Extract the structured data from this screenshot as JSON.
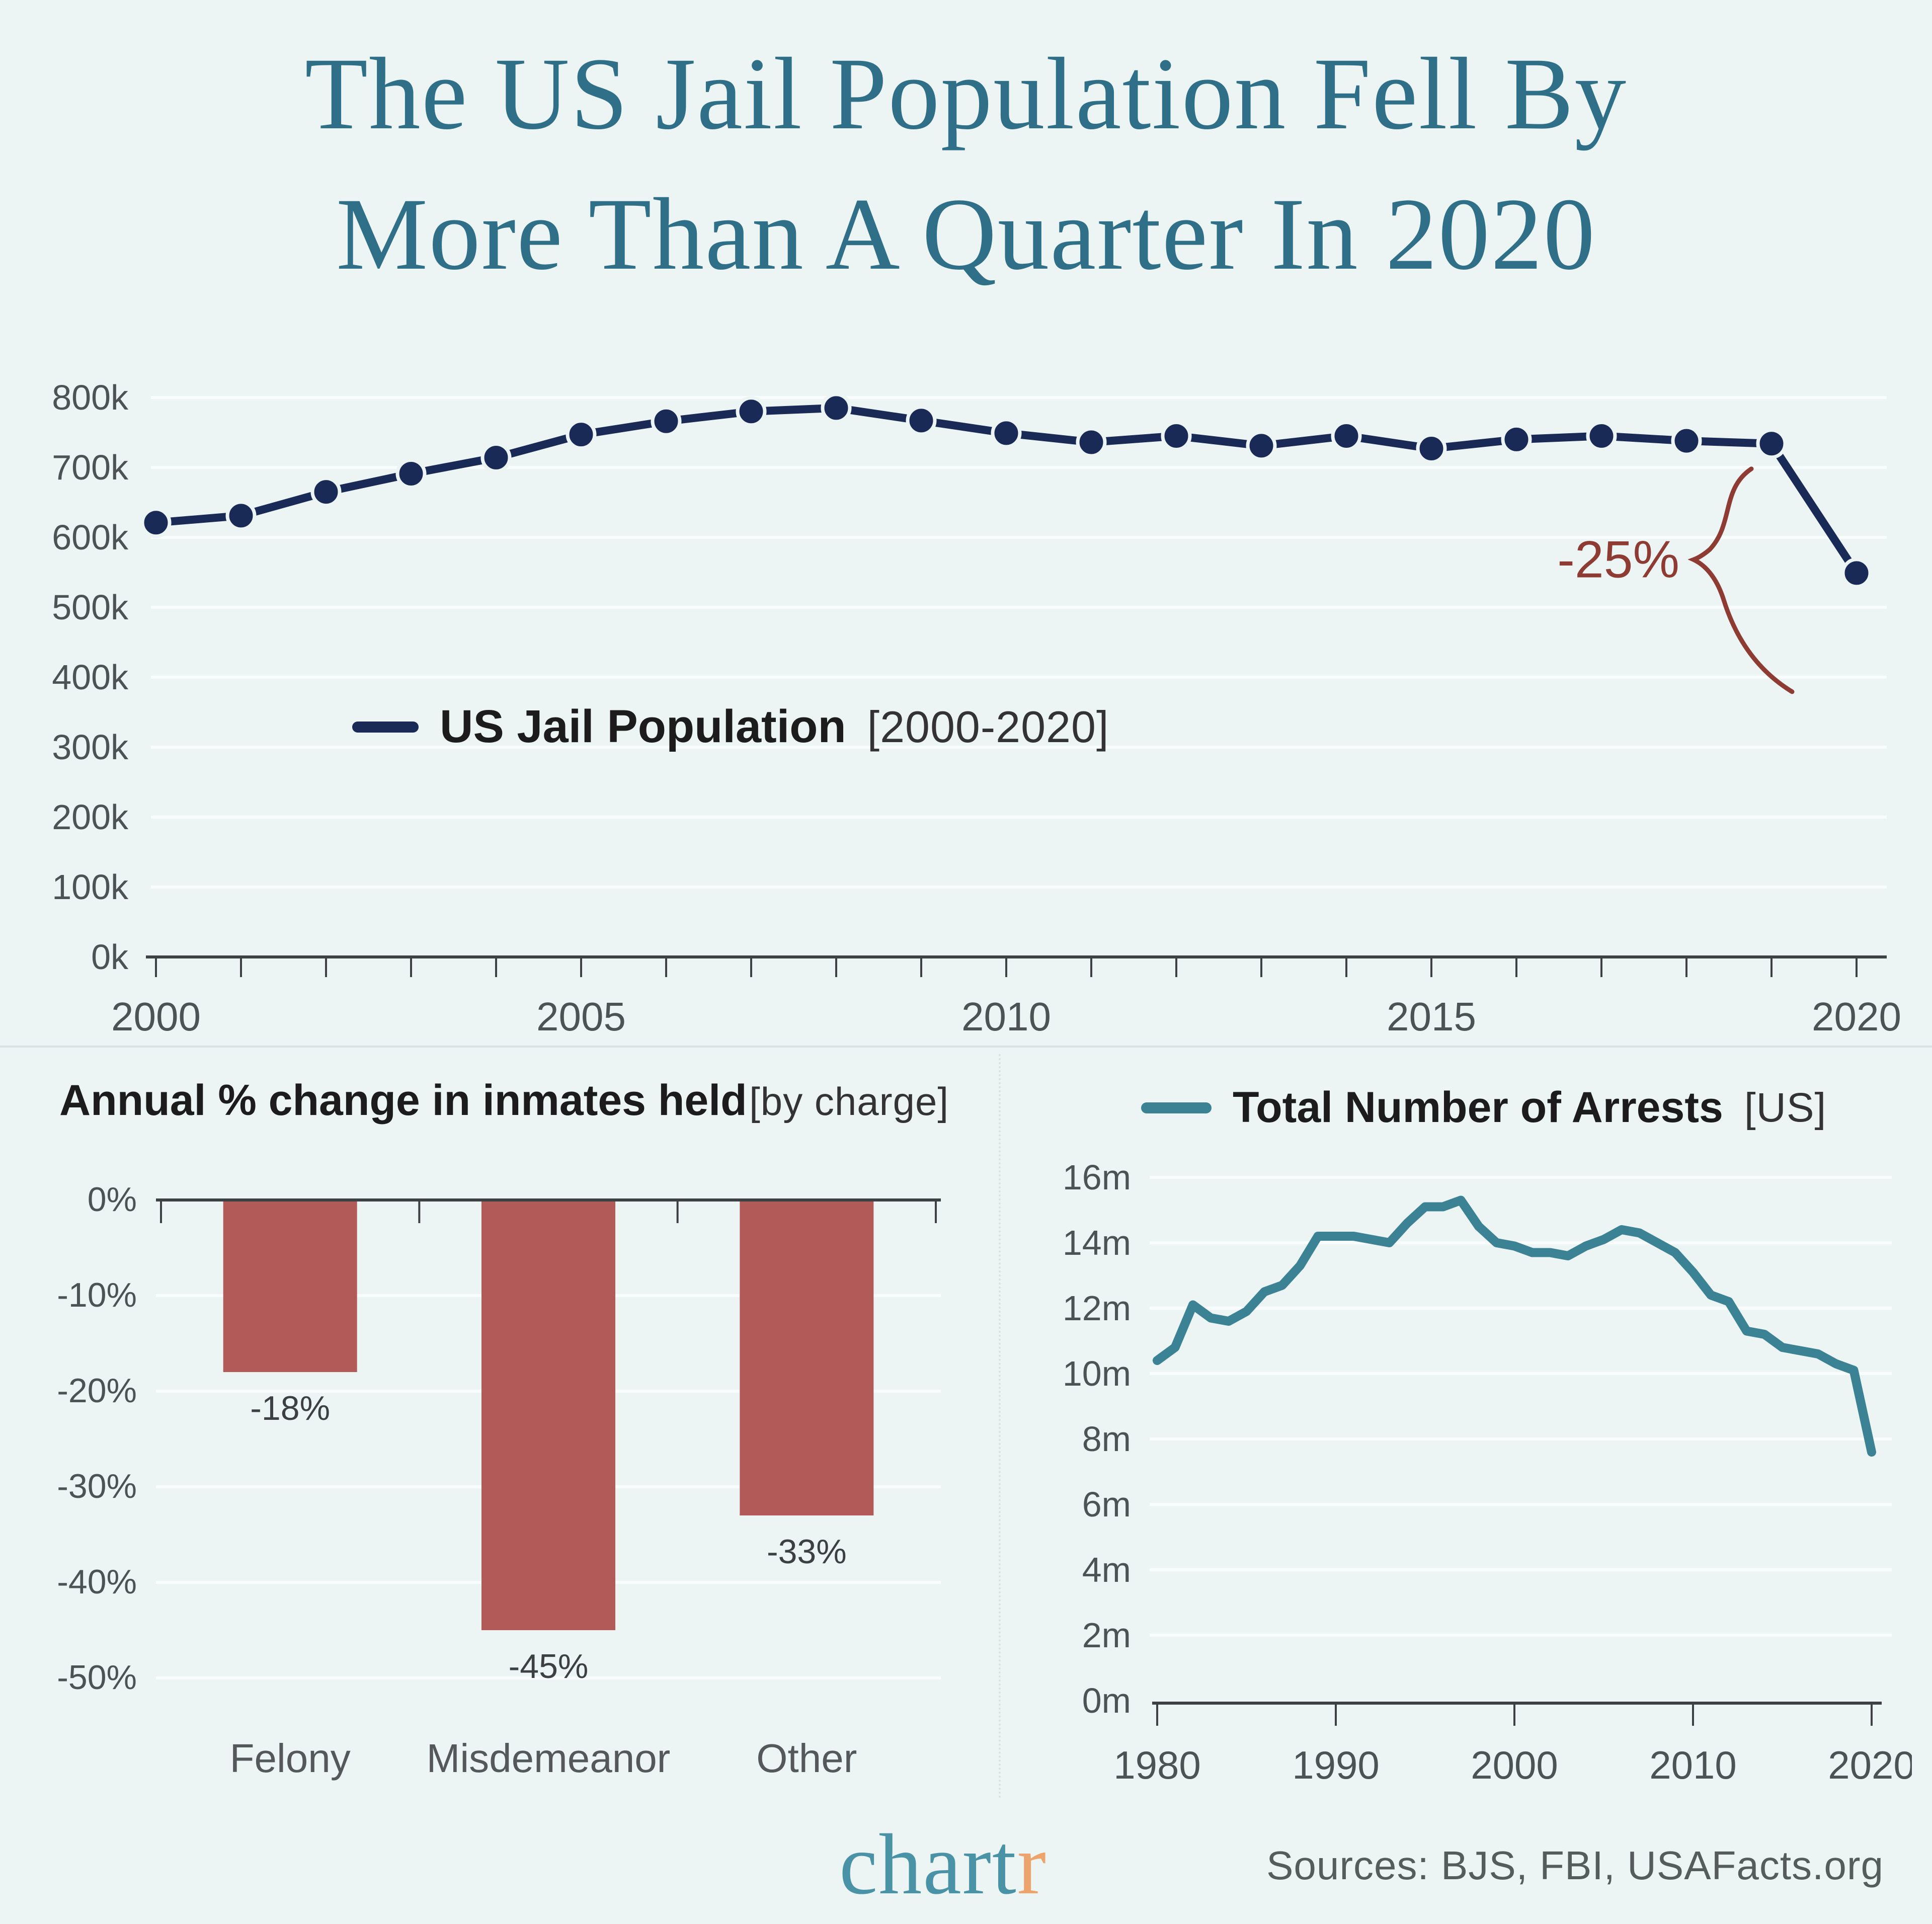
{
  "title": {
    "line1": "The US Jail Population Fell By",
    "line2": "More Than A Quarter In 2020"
  },
  "chart_data": [
    {
      "id": "jail_population",
      "type": "line",
      "legend_label": "US Jail Population",
      "legend_bracket": "[2000-2020]",
      "unit": "thousands",
      "x_range": [
        2000,
        2020
      ],
      "x": [
        2000,
        2001,
        2002,
        2003,
        2004,
        2005,
        2006,
        2007,
        2008,
        2009,
        2010,
        2011,
        2012,
        2013,
        2014,
        2015,
        2016,
        2017,
        2018,
        2019,
        2020
      ],
      "values": [
        621,
        631,
        665,
        691,
        714,
        747,
        766,
        780,
        785,
        767,
        749,
        736,
        745,
        731,
        745,
        727,
        740,
        745,
        738,
        734,
        549
      ],
      "ylim": [
        0,
        800
      ],
      "y_tick_labels": [
        "0k",
        "100k",
        "200k",
        "300k",
        "400k",
        "500k",
        "600k",
        "700k",
        "800k"
      ],
      "x_tick_labels": [
        "2000",
        "2005",
        "2010",
        "2015",
        "2020"
      ],
      "annotation": {
        "text": "-25%",
        "from_year": 2019,
        "to_year": 2020
      },
      "grid": true,
      "legend_position": "inside-left",
      "marker": "circle"
    },
    {
      "id": "inmates_change_by_charge",
      "type": "bar",
      "title_label": "Annual % change in inmates held",
      "title_bracket": "[by charge]",
      "categories": [
        "Felony",
        "Misdemeanor",
        "Other"
      ],
      "values": [
        -18,
        -45,
        -33
      ],
      "bar_labels": [
        "-18%",
        "-45%",
        "-33%"
      ],
      "ylim": [
        0,
        -50
      ],
      "y_tick_labels": [
        "0%",
        "-10%",
        "-20%",
        "-30%",
        "-40%",
        "-50%"
      ],
      "grid": true
    },
    {
      "id": "total_arrests",
      "type": "line",
      "legend_label": "Total Number of Arrests",
      "legend_bracket": "[US]",
      "unit": "millions",
      "x_range": [
        1980,
        2020
      ],
      "x": [
        1980,
        1981,
        1982,
        1983,
        1984,
        1985,
        1986,
        1987,
        1988,
        1989,
        1990,
        1991,
        1992,
        1993,
        1994,
        1995,
        1996,
        1997,
        1998,
        1999,
        2000,
        2001,
        2002,
        2003,
        2004,
        2005,
        2006,
        2007,
        2008,
        2009,
        2010,
        2011,
        2012,
        2013,
        2014,
        2015,
        2016,
        2017,
        2018,
        2019,
        2020
      ],
      "values": [
        10.4,
        10.8,
        12.1,
        11.7,
        11.6,
        11.9,
        12.5,
        12.7,
        13.3,
        14.2,
        14.2,
        14.2,
        14.1,
        14.0,
        14.6,
        15.1,
        15.1,
        15.3,
        14.5,
        14.0,
        13.9,
        13.7,
        13.7,
        13.6,
        13.9,
        14.1,
        14.4,
        14.3,
        14.0,
        13.7,
        13.1,
        12.4,
        12.2,
        11.3,
        11.2,
        10.8,
        10.7,
        10.6,
        10.3,
        10.1,
        7.6
      ],
      "ylim": [
        0,
        16
      ],
      "y_tick_labels": [
        "0m",
        "2m",
        "4m",
        "6m",
        "8m",
        "10m",
        "12m",
        "14m",
        "16m"
      ],
      "x_tick_labels": [
        "1980",
        "1990",
        "2000",
        "2010",
        "2020"
      ],
      "grid": true,
      "legend_position": "top",
      "marker": "none"
    }
  ],
  "footer": {
    "logo_main": "chart",
    "logo_accent": "r",
    "sources": "Sources: BJS, FBI, USAFacts.org"
  },
  "colors": {
    "bg": "#ecf5f4",
    "title_teal": "#2f7088",
    "navy": "#1a2a57",
    "bar_red": "#b15a57",
    "arrest_teal": "#3b8294",
    "annotation_red": "#8e3b33",
    "axis_dark": "#3d4144",
    "tick_gray": "#4d5254",
    "grid": "#f8fcfc",
    "divider": "#d7e4e3",
    "text_dark": "#1c1c1c",
    "bracket_gray": "#333333",
    "label_gray": "#54585a",
    "logo_teal": "#4a93a7",
    "logo_orange": "#eca36c",
    "source_gray": "#565b5c"
  }
}
